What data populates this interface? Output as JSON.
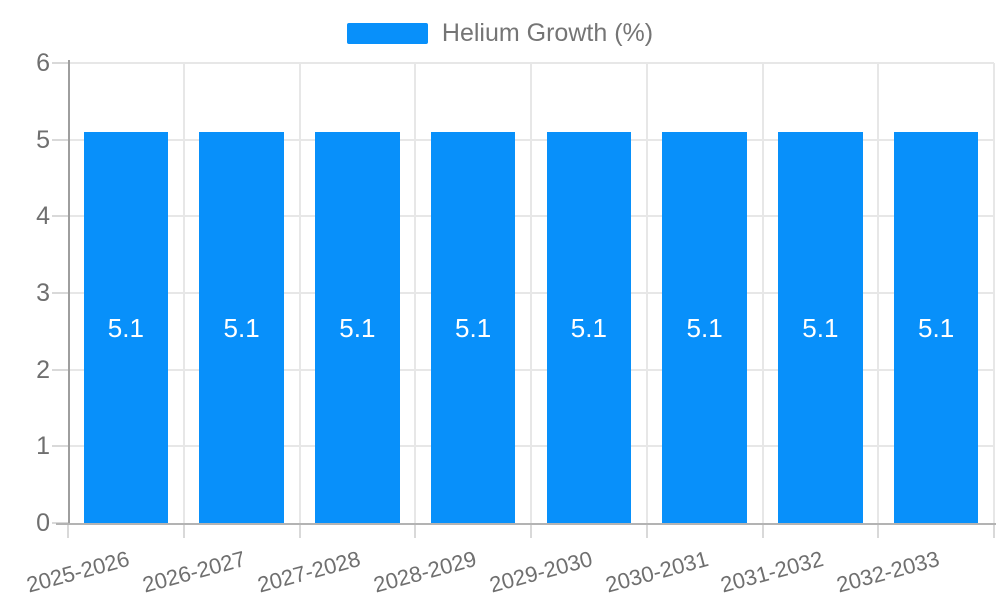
{
  "legend": {
    "label": "Helium Growth (%)"
  },
  "chart_data": {
    "type": "bar",
    "title": "",
    "xlabel": "",
    "ylabel": "",
    "categories": [
      "2025-2026",
      "2026-2027",
      "2027-2028",
      "2028-2029",
      "2029-2030",
      "2030-2031",
      "2031-2032",
      "2032-2033"
    ],
    "series": [
      {
        "name": "Helium Growth (%)",
        "values": [
          5.1,
          5.1,
          5.1,
          5.1,
          5.1,
          5.1,
          5.1,
          5.1
        ]
      }
    ],
    "value_labels": [
      "5.1",
      "5.1",
      "5.1",
      "5.1",
      "5.1",
      "5.1",
      "5.1",
      "5.1"
    ],
    "ylim": [
      0,
      6
    ],
    "yticks": [
      0,
      1,
      2,
      3,
      4,
      5,
      6
    ],
    "grid": true,
    "legend_position": "top"
  },
  "colors": {
    "bar": "#0890FA",
    "grid": "#e7e7e7",
    "y_axis_line": "#9e9e9e",
    "x_axis_line": "#b3b3b3",
    "tick_mark": "#d9d9d9",
    "axis_label_text": "#6f6f6f",
    "legend_text": "#757575",
    "value_label_text": "#ffffff"
  }
}
